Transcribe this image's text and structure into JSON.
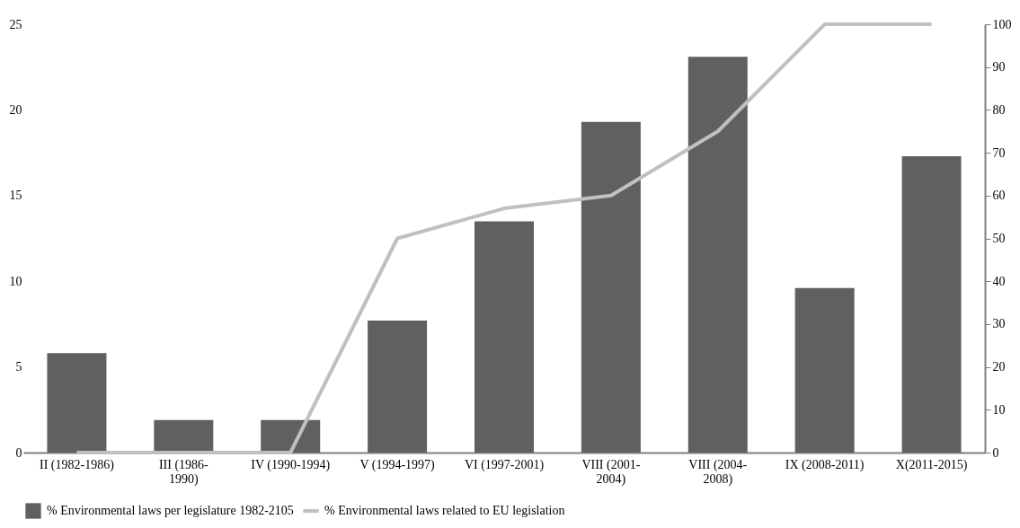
{
  "chart_data": {
    "type": "bar",
    "categories": [
      "II (1982-1986)",
      "III (1986-1990)",
      "IV (1990-1994)",
      "V (1994-1997)",
      "VI (1997-2001)",
      "VIII (2001-2004)",
      "VIII (2004-2008)",
      "IX (2008-2011)",
      "X(2011-2015)"
    ],
    "series": [
      {
        "name": "% Environmental laws per legislature 1982-2105",
        "color": "#606060",
        "values": [
          5.8,
          1.9,
          1.9,
          7.7,
          13.5,
          19.3,
          23.1,
          9.6,
          17.3
        ]
      },
      {
        "name": "% Environmental laws related to EU legislation",
        "type": "line",
        "axis": "y2",
        "color": "#c0c0c0",
        "values": [
          0,
          0,
          0,
          50,
          57,
          60,
          75,
          100,
          100
        ]
      }
    ],
    "ylim": [
      0,
      25
    ],
    "yticks": [
      0,
      5,
      10,
      15,
      20,
      25
    ],
    "y2lim": [
      0,
      100
    ],
    "y2ticks": [
      0,
      10,
      20,
      30,
      40,
      50,
      60,
      70,
      80,
      90,
      100
    ],
    "grid": false,
    "legend": "bottom",
    "marker": "none",
    "line_style": "solid"
  }
}
